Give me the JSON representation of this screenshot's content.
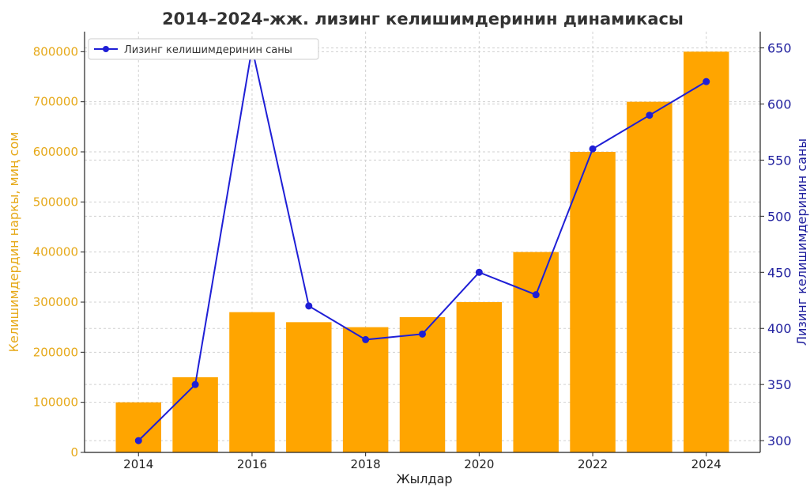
{
  "chart_data": {
    "type": "bar",
    "title": "2014–2024-жж. лизинг келишимдеринин динамикасы",
    "xlabel": "Жылдар",
    "ylabel_left": "Келишимдердин наркы, миң сом",
    "ylabel_right": "Лизинг келишимдеринин саны",
    "categories": [
      2014,
      2015,
      2016,
      2017,
      2018,
      2019,
      2020,
      2021,
      2022,
      2023,
      2024
    ],
    "x_tick_labels": [
      "2014",
      "2016",
      "2018",
      "2020",
      "2022",
      "2024"
    ],
    "ylim_left": [
      0,
      840000
    ],
    "yticks_left": [
      "0",
      "100000",
      "200000",
      "300000",
      "400000",
      "500000",
      "600000",
      "700000",
      "800000"
    ],
    "ylim_right": [
      289.5,
      664.5
    ],
    "yticks_right": [
      "300",
      "350",
      "400",
      "450",
      "500",
      "550",
      "600",
      "650"
    ],
    "grid": true,
    "legend_position": "upper-left",
    "series": [
      {
        "chart": "bar",
        "axis": "left",
        "color": "#FFA500",
        "values": [
          100000,
          150000,
          280000,
          260000,
          250000,
          270000,
          300000,
          400000,
          600000,
          700000,
          800000
        ]
      },
      {
        "chart": "line",
        "axis": "right",
        "name": "Лизинг келишимдеринин саны",
        "color": "#1f1fd6",
        "values": [
          300,
          350,
          650,
          420,
          390,
          395,
          450,
          430,
          560,
          590,
          620
        ]
      }
    ],
    "left_axis_color": "#e6a817",
    "right_axis_color": "#1f1f9e"
  }
}
